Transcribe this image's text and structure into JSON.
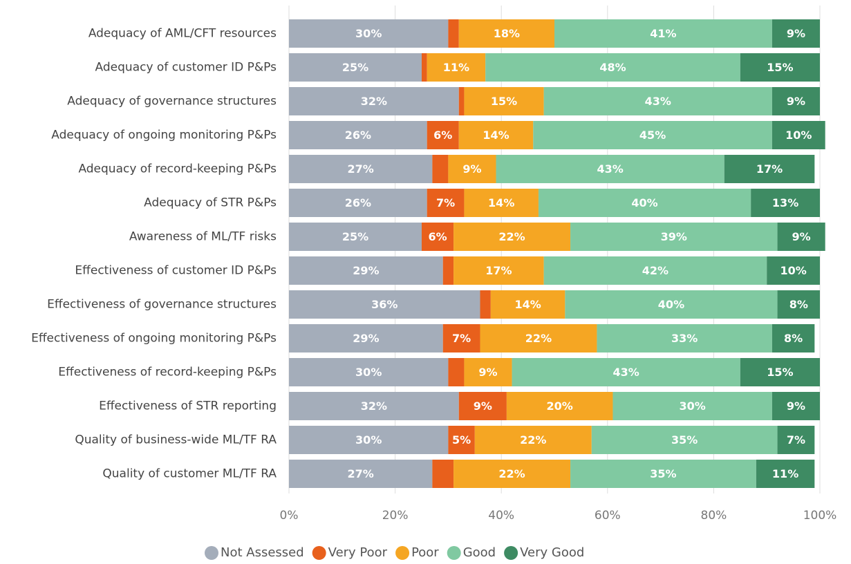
{
  "chart_data": {
    "type": "stacked_bar_horizontal",
    "categories": [
      "Adequacy of AML/CFT resources",
      "Adequacy of customer ID P&Ps",
      "Adequacy of governance structures",
      "Adequacy of ongoing monitoring P&Ps",
      "Adequacy of record-keeping P&Ps",
      "Adequacy of STR P&Ps",
      "Awareness of ML/TF risks",
      "Effectiveness of customer ID P&Ps",
      "Effectiveness of governance structures",
      "Effectiveness of ongoing monitoring P&Ps",
      "Effectiveness of record-keeping P&Ps",
      "Effectiveness of STR reporting",
      "Quality of business-wide ML/TF RA",
      "Quality of customer ML/TF RA"
    ],
    "series": [
      {
        "name": "Not Assessed",
        "color": "#a4adba",
        "values": [
          30,
          25,
          32,
          26,
          27,
          26,
          25,
          29,
          36,
          29,
          30,
          32,
          30,
          27
        ],
        "value_labels": [
          "30%",
          "25%",
          "32%",
          "26%",
          "27%",
          "26%",
          "25%",
          "29%",
          "36%",
          "29%",
          "30%",
          "32%",
          "30%",
          "27%"
        ]
      },
      {
        "name": "Very Poor",
        "color": "#e8601c",
        "values": [
          2,
          1,
          1,
          6,
          3,
          7,
          6,
          2,
          2,
          7,
          3,
          9,
          5,
          4
        ],
        "value_labels": [
          null,
          null,
          null,
          "6%",
          null,
          "7%",
          "6%",
          null,
          null,
          "7%",
          null,
          "9%",
          "5%",
          null
        ]
      },
      {
        "name": "Poor",
        "color": "#f5a623",
        "values": [
          18,
          11,
          15,
          14,
          9,
          14,
          22,
          17,
          14,
          22,
          9,
          20,
          22,
          22
        ],
        "value_labels": [
          "18%",
          "11%",
          "15%",
          "14%",
          "9%",
          "14%",
          "22%",
          "17%",
          "14%",
          "22%",
          "9%",
          "20%",
          "22%",
          "22%"
        ]
      },
      {
        "name": "Good",
        "color": "#80c9a1",
        "values": [
          41,
          48,
          43,
          45,
          43,
          40,
          39,
          42,
          40,
          33,
          43,
          30,
          35,
          35
        ],
        "value_labels": [
          "41%",
          "48%",
          "43%",
          "45%",
          "43%",
          "40%",
          "39%",
          "42%",
          "40%",
          "33%",
          "43%",
          "30%",
          "35%",
          "35%"
        ]
      },
      {
        "name": "Very Good",
        "color": "#3e8b63",
        "values": [
          9,
          15,
          9,
          10,
          17,
          13,
          9,
          10,
          8,
          8,
          15,
          9,
          7,
          11
        ],
        "value_labels": [
          "9%",
          "15%",
          "9%",
          "10%",
          "17%",
          "13%",
          "9%",
          "10%",
          "8%",
          "8%",
          "15%",
          "9%",
          "7%",
          "11%"
        ]
      }
    ],
    "xlim": [
      0,
      100
    ],
    "xticks": [
      {
        "value": 0,
        "label": "0%"
      },
      {
        "value": 20,
        "label": "20%"
      },
      {
        "value": 40,
        "label": "40%"
      },
      {
        "value": 60,
        "label": "60%"
      },
      {
        "value": 80,
        "label": "80%"
      },
      {
        "value": 100,
        "label": "100%"
      }
    ],
    "grid": true,
    "legend": "bottom"
  }
}
